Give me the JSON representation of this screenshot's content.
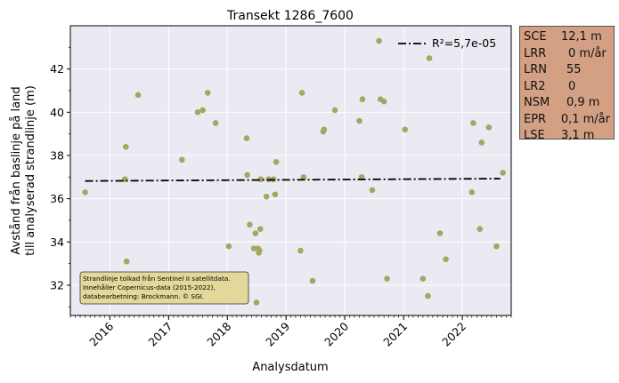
{
  "chart_data": {
    "type": "scatter",
    "title": "Transekt 1286_7600",
    "xlabel": "Analysdatum",
    "ylabel": [
      "Avstånd från baslinje på land",
      "till analyserad strandlinje (m)"
    ],
    "xlim": [
      "2015-05-01",
      "2022-11-01"
    ],
    "ylim": [
      30.6,
      44.0
    ],
    "x_ticks": [
      "2016",
      "2017",
      "2018",
      "2019",
      "2020",
      "2021",
      "2022"
    ],
    "y_ticks": [
      32,
      34,
      36,
      38,
      40,
      42
    ],
    "grid": true,
    "background": "#eaeaf2",
    "point_color": "#a6a664",
    "trend": {
      "label": "R²=5,7e-05",
      "style": "dash-dot",
      "color": "#000000",
      "start": {
        "x": "2015-08-01",
        "y": 36.82
      },
      "end": {
        "x": "2022-08-25",
        "y": 36.93
      }
    },
    "legend_position": "top-right",
    "points": [
      {
        "x": "2015-08-01",
        "y": 36.3
      },
      {
        "x": "2016-04-05",
        "y": 36.9
      },
      {
        "x": "2016-04-10",
        "y": 38.4
      },
      {
        "x": "2016-04-15",
        "y": 33.1
      },
      {
        "x": "2016-06-25",
        "y": 40.8
      },
      {
        "x": "2017-03-25",
        "y": 37.8
      },
      {
        "x": "2017-07-01",
        "y": 40.0
      },
      {
        "x": "2017-08-01",
        "y": 40.1
      },
      {
        "x": "2017-09-01",
        "y": 40.9
      },
      {
        "x": "2017-10-20",
        "y": 39.5
      },
      {
        "x": "2018-01-10",
        "y": 33.8
      },
      {
        "x": "2018-05-01",
        "y": 38.8
      },
      {
        "x": "2018-05-05",
        "y": 37.1
      },
      {
        "x": "2018-05-20",
        "y": 34.8
      },
      {
        "x": "2018-06-15",
        "y": 33.7
      },
      {
        "x": "2018-06-25",
        "y": 34.4
      },
      {
        "x": "2018-07-01",
        "y": 31.2
      },
      {
        "x": "2018-07-10",
        "y": 33.7
      },
      {
        "x": "2018-07-15",
        "y": 33.5
      },
      {
        "x": "2018-07-20",
        "y": 33.6
      },
      {
        "x": "2018-07-25",
        "y": 34.6
      },
      {
        "x": "2018-07-28",
        "y": 36.9
      },
      {
        "x": "2018-09-01",
        "y": 36.1
      },
      {
        "x": "2018-09-15",
        "y": 36.9
      },
      {
        "x": "2018-10-15",
        "y": 36.9
      },
      {
        "x": "2018-10-25",
        "y": 36.2
      },
      {
        "x": "2018-11-01",
        "y": 37.7
      },
      {
        "x": "2019-04-01",
        "y": 33.6
      },
      {
        "x": "2019-04-10",
        "y": 40.9
      },
      {
        "x": "2019-04-20",
        "y": 37.0
      },
      {
        "x": "2019-06-15",
        "y": 32.2
      },
      {
        "x": "2019-08-20",
        "y": 39.1
      },
      {
        "x": "2019-08-25",
        "y": 39.2
      },
      {
        "x": "2019-11-01",
        "y": 40.1
      },
      {
        "x": "2020-04-01",
        "y": 39.6
      },
      {
        "x": "2020-04-15",
        "y": 37.0
      },
      {
        "x": "2020-04-20",
        "y": 40.6
      },
      {
        "x": "2020-06-20",
        "y": 36.4
      },
      {
        "x": "2020-08-01",
        "y": 43.3
      },
      {
        "x": "2020-08-10",
        "y": 40.6
      },
      {
        "x": "2020-09-01",
        "y": 40.5
      },
      {
        "x": "2020-09-20",
        "y": 32.3
      },
      {
        "x": "2021-01-10",
        "y": 39.2
      },
      {
        "x": "2021-05-01",
        "y": 32.3
      },
      {
        "x": "2021-06-01",
        "y": 31.5
      },
      {
        "x": "2021-06-10",
        "y": 42.5
      },
      {
        "x": "2021-08-15",
        "y": 34.4
      },
      {
        "x": "2021-09-20",
        "y": 33.2
      },
      {
        "x": "2022-03-01",
        "y": 36.3
      },
      {
        "x": "2022-03-10",
        "y": 39.5
      },
      {
        "x": "2022-04-20",
        "y": 34.6
      },
      {
        "x": "2022-05-01",
        "y": 38.6
      },
      {
        "x": "2022-06-15",
        "y": 39.3
      },
      {
        "x": "2022-08-01",
        "y": 33.8
      },
      {
        "x": "2022-09-10",
        "y": 37.2
      }
    ],
    "annotation": [
      "Strandlinje tolkad från Sentinel II satellitdata.",
      "Innehåller Copernicus-data (2015-2022),",
      "databearbetning: Brockmann. © SGI."
    ],
    "annotation_bg": "#e3d79a"
  },
  "stats": [
    {
      "key": "SCE",
      "value": "12,1 m"
    },
    {
      "key": "LRR",
      "value": "0 m/år"
    },
    {
      "key": "LRN",
      "value": "55"
    },
    {
      "key": "LR2",
      "value": "0"
    },
    {
      "key": "NSM",
      "value": "0,9 m"
    },
    {
      "key": "EPR",
      "value": "0,1 m/år"
    },
    {
      "key": "LSE",
      "value": "3,1 m"
    }
  ]
}
